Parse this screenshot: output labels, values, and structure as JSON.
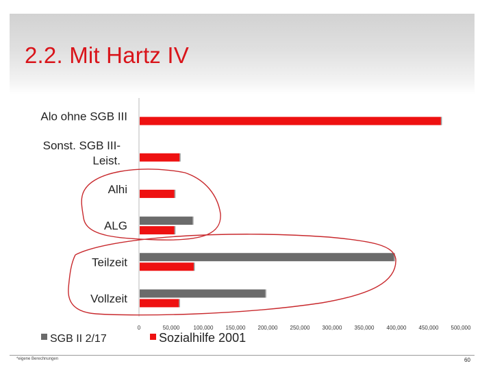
{
  "slide": {
    "title": "2.2. Mit Hartz IV",
    "footnote": "*eigene Berechnungen",
    "page_number": "60"
  },
  "colors": {
    "series_grey": "#6b6b6b",
    "series_red": "#ee1111",
    "title": "#d9141a",
    "annotation": "#c8282c"
  },
  "chart_data": {
    "type": "bar",
    "orientation": "horizontal",
    "title": "",
    "xlabel": "",
    "ylabel": "",
    "categories": [
      "Alo ohne SGB III",
      "Sonst. SGB III-\nLeist.",
      "Alhi",
      "ALG",
      "Teilzeit",
      "Vollzeit"
    ],
    "category_lines": [
      [
        "Alo ohne SGB III"
      ],
      [
        "Sonst. SGB III-",
        "Leist."
      ],
      [
        "Alhi"
      ],
      [
        "ALG"
      ],
      [
        "Teilzeit"
      ],
      [
        "Vollzeit"
      ]
    ],
    "series": [
      {
        "name": "SGB II 2/17",
        "color": "#6b6b6b",
        "values": [
          null,
          null,
          null,
          82000,
          395000,
          195000
        ]
      },
      {
        "name": "Sozialhilfe 2001",
        "color": "#ee1111",
        "values": [
          468000,
          62000,
          54000,
          54000,
          84000,
          61000
        ]
      }
    ],
    "xlim": [
      0,
      500000
    ],
    "xticks": [
      0,
      50000,
      100000,
      150000,
      200000,
      250000,
      300000,
      350000,
      400000,
      450000,
      500000
    ],
    "xtick_labels": [
      "0",
      "50,000",
      "100,000",
      "150,000",
      "200,000",
      "250,000",
      "300,000",
      "350,000",
      "400,000",
      "450,000",
      "500,000"
    ],
    "grid": false,
    "legend_position": "bottom-left",
    "annotations": [
      "hand-drawn red loop around Alhi and ALG",
      "hand-drawn red loop around Teilzeit and Vollzeit"
    ]
  }
}
